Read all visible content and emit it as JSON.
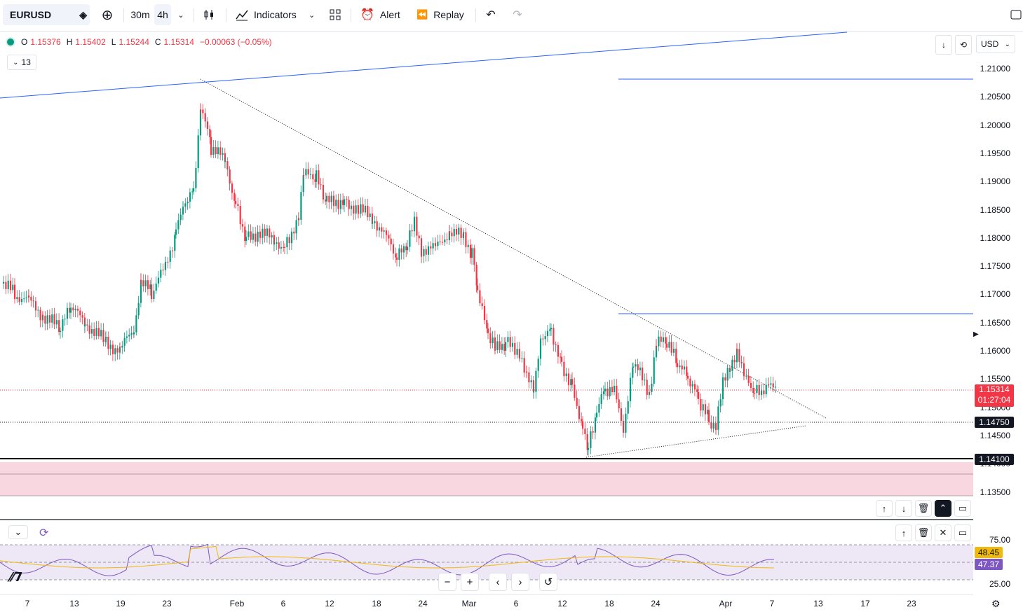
{
  "toolbar": {
    "symbol": "EURUSD",
    "interval_1": "30m",
    "interval_2": "4h",
    "indicators": "Indicators",
    "alert": "Alert",
    "replay": "Replay"
  },
  "legend": {
    "o_label": "O",
    "o_value": "1.15376",
    "h_label": "H",
    "h_value": "1.15402",
    "l_label": "L",
    "l_value": "1.15244",
    "c_label": "C",
    "c_value": "1.15314",
    "change": "−0.00063 (−0.05%)",
    "indicator_count": "13"
  },
  "currency": "USD",
  "price_axis": [
    "1.21000",
    "1.20500",
    "1.20000",
    "1.19500",
    "1.19000",
    "1.18500",
    "1.18000",
    "1.17500",
    "1.17000",
    "1.16500",
    "1.16000",
    "1.15500",
    "1.15000",
    "1.14500",
    "1.14000",
    "1.13500"
  ],
  "price_tags": {
    "last_price": "1.15314",
    "countdown": "01:27:04",
    "level_1": "1.14750",
    "level_2": "1.14100"
  },
  "rsi": {
    "upper": "75.00",
    "lower": "25.00",
    "value_1": "48.45",
    "value_2": "47.37"
  },
  "time_axis": [
    "7",
    "13",
    "19",
    "23",
    "Feb",
    "6",
    "12",
    "18",
    "24",
    "Mar",
    "6",
    "12",
    "18",
    "24",
    "Apr",
    "7",
    "13",
    "17",
    "23"
  ],
  "colors": {
    "up": "#089981",
    "down": "#f23645",
    "trendline": "#2962ff",
    "zone": "#f8d7e0",
    "rsi_band": "#ede7f6",
    "rsi_line": "#7e57c2",
    "rsi_ma": "#f0b90b"
  }
}
